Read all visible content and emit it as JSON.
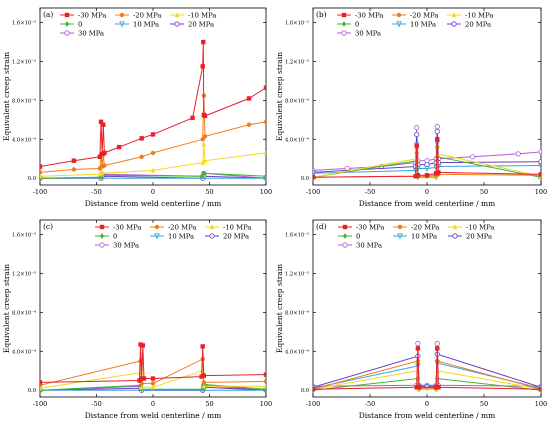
{
  "legend": {
    "entries": [
      {
        "label": "-30 MPa",
        "color": "#e8202a",
        "marker": "square"
      },
      {
        "label": "-20 MPa",
        "color": "#f07c1e",
        "marker": "circle"
      },
      {
        "label": "-10 MPa",
        "color": "#f4d81c",
        "marker": "triangle"
      },
      {
        "label": "0",
        "color": "#3fb62c",
        "marker": "diamond"
      },
      {
        "label": "10 MPa",
        "color": "#3aa3e0",
        "marker": "triangle-down"
      },
      {
        "label": "20 MPa",
        "color": "#6a3fbf",
        "marker": "hollow-circle"
      },
      {
        "label": "30 MPa",
        "color": "#b05ad8",
        "marker": "hollow-circle"
      }
    ]
  },
  "axes": {
    "xticks": [
      "-100",
      "-50",
      "0",
      "50",
      "100"
    ],
    "yticks": [
      "0.0",
      "4.0×10⁻⁴",
      "8.0×10⁻⁴",
      "1.2×10⁻³",
      "1.6×10⁻³"
    ],
    "xlabel": "Distance from weld centerline / mm",
    "ylabel": "Equivalent creep strain"
  },
  "chart_data": [
    {
      "panel": "(a)",
      "type": "line",
      "xlim": [
        -100,
        100
      ],
      "ylim": [
        -7e-05,
        0.00175
      ],
      "xlabel": "Distance from weld centerline / mm",
      "ylabel": "Equivalent creep strain",
      "series": [
        {
          "name": "-30 MPa",
          "x": [
            -100,
            -70,
            -47,
            -46,
            -45,
            -44,
            -43,
            -30,
            -10,
            0,
            35,
            44,
            44.5,
            45,
            46,
            85,
            100
          ],
          "y": [
            0.00012,
            0.00018,
            0.00022,
            0.00058,
            0.00025,
            0.00055,
            0.00026,
            0.00032,
            0.00041,
            0.00045,
            0.00062,
            0.00115,
            0.0014,
            0.00065,
            0.00064,
            0.00082,
            0.00093
          ]
        },
        {
          "name": "-20 MPa",
          "x": [
            -100,
            -70,
            -47,
            -46,
            -45,
            -44,
            -43,
            -10,
            0,
            44,
            45,
            46,
            85,
            100
          ],
          "y": [
            6e-05,
            9e-05,
            0.0001,
            0.00024,
            0.00012,
            0.00024,
            0.00013,
            0.00022,
            0.00026,
            0.0004,
            0.00085,
            0.00043,
            0.00055,
            0.00058
          ]
        },
        {
          "name": "-10 MPa",
          "x": [
            -100,
            -47,
            -46,
            -45,
            0,
            44,
            45,
            46,
            100
          ],
          "y": [
            2e-05,
            4e-05,
            0.00012,
            5e-05,
            8e-05,
            0.00016,
            0.00035,
            0.00018,
            0.00026
          ]
        },
        {
          "name": "0",
          "x": [
            -100,
            -46,
            -45,
            44,
            45,
            100
          ],
          "y": [
            0,
            1e-05,
            3e-05,
            2e-05,
            5e-05,
            2e-05
          ]
        },
        {
          "name": "10 MPa",
          "x": [
            -100,
            100
          ],
          "y": [
            0,
            0
          ]
        },
        {
          "name": "20 MPa",
          "x": [
            -100,
            -46,
            -45,
            44,
            45,
            100
          ],
          "y": [
            0,
            0,
            2e-05,
            0,
            2e-05,
            0
          ]
        },
        {
          "name": "30 MPa",
          "x": [
            -100,
            -46,
            -45,
            44,
            45,
            100
          ],
          "y": [
            0,
            1e-05,
            4e-05,
            2e-05,
            5e-05,
            0
          ]
        }
      ]
    },
    {
      "panel": "(b)",
      "type": "line",
      "xlim": [
        -100,
        100
      ],
      "ylim": [
        -7e-05,
        0.00175
      ],
      "xlabel": "Distance from weld centerline / mm",
      "ylabel": "Equivalent creep strain",
      "series": [
        {
          "name": "-30 MPa",
          "x": [
            -100,
            -10,
            -9,
            -8,
            0,
            8,
            9,
            10,
            100
          ],
          "y": [
            1e-05,
            2e-05,
            0.00033,
            3e-05,
            3e-05,
            5e-05,
            0.0004,
            6e-05,
            4e-05
          ]
        },
        {
          "name": "-20 MPa",
          "x": [
            -100,
            -10,
            -9,
            -8,
            0,
            8,
            9,
            10,
            100
          ],
          "y": [
            1e-05,
            2e-05,
            0.00026,
            2e-05,
            2e-05,
            3e-05,
            0.00032,
            4e-05,
            3e-05
          ]
        },
        {
          "name": "-10 MPa",
          "x": [
            -100,
            -9,
            -8,
            8,
            9,
            100
          ],
          "y": [
            1e-05,
            0.0002,
            2e-05,
            2e-05,
            0.00025,
            2e-05
          ]
        },
        {
          "name": "0",
          "x": [
            -100,
            -9,
            -8,
            8,
            9,
            100
          ],
          "y": [
            1e-05,
            0.00018,
            1e-05,
            1e-05,
            0.00022,
            1e-05
          ]
        },
        {
          "name": "10 MPa",
          "x": [
            -100,
            -10,
            -9,
            -8,
            0,
            8,
            9,
            10,
            100
          ],
          "y": [
            5e-05,
            8e-05,
            0.00034,
            0.0001,
            0.0001,
            0.00011,
            0.00036,
            0.00012,
            0.00013
          ]
        },
        {
          "name": "20 MPa",
          "x": [
            -100,
            -10,
            -9,
            -8,
            0,
            8,
            9,
            10,
            100
          ],
          "y": [
            6e-05,
            0.00012,
            0.00045,
            0.00014,
            0.00014,
            0.00016,
            0.00048,
            0.00016,
            0.00017
          ]
        },
        {
          "name": "30 MPa",
          "x": [
            -100,
            -70,
            -40,
            -10,
            -9,
            -8,
            0,
            8,
            9,
            10,
            40,
            80,
            100
          ],
          "y": [
            8e-05,
            0.0001,
            0.00012,
            0.00016,
            0.00052,
            0.00018,
            0.00018,
            0.0002,
            0.00053,
            0.0002,
            0.00022,
            0.00025,
            0.00027
          ]
        }
      ]
    },
    {
      "panel": "(c)",
      "type": "line",
      "xlim": [
        -100,
        100
      ],
      "ylim": [
        -7e-05,
        0.00175
      ],
      "xlabel": "Distance from weld centerline / mm",
      "ylabel": "Equivalent creep strain",
      "series": [
        {
          "name": "-30 MPa",
          "x": [
            -100,
            -12,
            -11,
            -10,
            -9,
            -8,
            0,
            43,
            44,
            45,
            100
          ],
          "y": [
            8e-05,
            0.0001,
            0.00047,
            0.00012,
            0.00046,
            0.00012,
            0.00012,
            0.00014,
            0.00045,
            0.00015,
            0.00016
          ]
        },
        {
          "name": "-20 MPa",
          "x": [
            -100,
            -11,
            -10,
            0,
            44,
            45,
            100
          ],
          "y": [
            5e-05,
            0.0003,
            7e-05,
            7e-05,
            0.00032,
            8e-05,
            9e-05
          ]
        },
        {
          "name": "-10 MPa",
          "x": [
            -100,
            -11,
            -10,
            0,
            44,
            45,
            100
          ],
          "y": [
            2e-05,
            0.00018,
            3e-05,
            3e-05,
            0.0002,
            4e-05,
            4e-05
          ]
        },
        {
          "name": "0",
          "x": [
            -100,
            -11,
            -10,
            44,
            45,
            100
          ],
          "y": [
            0,
            5e-05,
            1e-05,
            1e-05,
            6e-05,
            1e-05
          ]
        },
        {
          "name": "10 MPa",
          "x": [
            -100,
            100
          ],
          "y": [
            0,
            0
          ]
        },
        {
          "name": "20 MPa",
          "x": [
            -100,
            -11,
            -10,
            44,
            45,
            100
          ],
          "y": [
            0,
            2e-05,
            0,
            0,
            3e-05,
            0
          ]
        },
        {
          "name": "30 MPa",
          "x": [
            -100,
            -11,
            -10,
            44,
            45,
            100
          ],
          "y": [
            0,
            4e-05,
            0,
            0,
            5e-05,
            0
          ]
        }
      ]
    },
    {
      "panel": "(d)",
      "type": "line",
      "xlim": [
        -100,
        100
      ],
      "ylim": [
        -7e-05,
        0.00175
      ],
      "xlabel": "Distance from weld centerline / mm",
      "ylabel": "Equivalent creep strain",
      "series": [
        {
          "name": "-30 MPa",
          "x": [
            -100,
            -9,
            -8,
            -7,
            8,
            9,
            10,
            100
          ],
          "y": [
            1e-05,
            3e-05,
            0.00043,
            3e-05,
            3e-05,
            0.00043,
            3e-05,
            1e-05
          ]
        },
        {
          "name": "-20 MPa",
          "x": [
            -100,
            -8,
            -7,
            8,
            9,
            100
          ],
          "y": [
            1e-05,
            0.0003,
            2e-05,
            2e-05,
            0.0003,
            1e-05
          ]
        },
        {
          "name": "-10 MPa",
          "x": [
            -100,
            -8,
            -7,
            8,
            9,
            100
          ],
          "y": [
            1e-05,
            0.0002,
            1e-05,
            1e-05,
            0.0002,
            1e-05
          ]
        },
        {
          "name": "0",
          "x": [
            -100,
            -8,
            -7,
            8,
            9,
            100
          ],
          "y": [
            0,
            0.00012,
            1e-05,
            1e-05,
            0.00012,
            0
          ]
        },
        {
          "name": "10 MPa",
          "x": [
            -100,
            -8,
            -7,
            0,
            8,
            9,
            100
          ],
          "y": [
            2e-05,
            0.00025,
            3e-05,
            3e-05,
            3e-05,
            0.00028,
            2e-05
          ]
        },
        {
          "name": "20 MPa",
          "x": [
            -100,
            -8,
            -7,
            0,
            8,
            9,
            100
          ],
          "y": [
            3e-05,
            0.00035,
            4e-05,
            4e-05,
            4e-05,
            0.00037,
            3e-05
          ]
        },
        {
          "name": "30 MPa",
          "x": [
            -100,
            -9,
            -8,
            -7,
            0,
            8,
            9,
            10,
            100
          ],
          "y": [
            4e-05,
            5e-05,
            0.00048,
            5e-05,
            5e-05,
            5e-05,
            0.00048,
            5e-05,
            4e-05
          ]
        }
      ]
    }
  ]
}
